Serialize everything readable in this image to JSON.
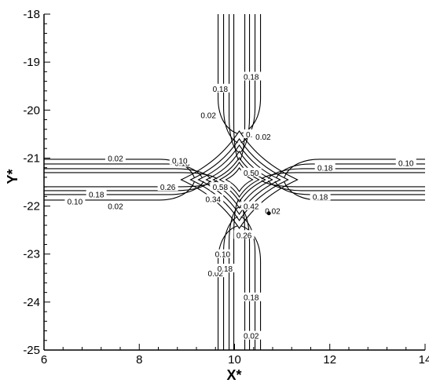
{
  "chart_data": {
    "type": "contour",
    "xlabel": "X*",
    "ylabel": "Y*",
    "xlim": [
      6,
      14
    ],
    "ylim": [
      -25,
      -18
    ],
    "xticks": [
      6,
      8,
      10,
      12,
      14
    ],
    "yticks": [
      -18,
      -19,
      -20,
      -21,
      -22,
      -23,
      -24,
      -25
    ],
    "xtick_labels": [
      "6",
      "8",
      "10",
      "12",
      "14"
    ],
    "ytick_labels": [
      "-18",
      "-19",
      "-20",
      "-21",
      "-22",
      "-23",
      "-24",
      "-25"
    ],
    "grid": false,
    "contour_levels": [
      0.02,
      0.1,
      0.18,
      0.26,
      0.34,
      0.42,
      0.5,
      0.58
    ],
    "center": {
      "x": 10.1,
      "y": -21.45
    },
    "marker_point": {
      "x": 10.72,
      "y": -22.15
    },
    "contour_labels": [
      {
        "text": "0.02",
        "x": 7.5,
        "y": -21.0
      },
      {
        "text": "0.18",
        "x": 8.9,
        "y": -21.1
      },
      {
        "text": "0.10",
        "x": 8.85,
        "y": -21.05
      },
      {
        "text": "0.18",
        "x": 11.9,
        "y": -21.2
      },
      {
        "text": "0.10",
        "x": 13.6,
        "y": -21.1
      },
      {
        "text": "0.26",
        "x": 8.6,
        "y": -21.6
      },
      {
        "text": "0.18",
        "x": 7.1,
        "y": -21.75
      },
      {
        "text": "0.10",
        "x": 6.65,
        "y": -21.9
      },
      {
        "text": "0.02",
        "x": 7.5,
        "y": -22.0
      },
      {
        "text": "0.18",
        "x": 11.8,
        "y": -21.8
      },
      {
        "text": "0.58",
        "x": 9.7,
        "y": -21.6
      },
      {
        "text": "0.50",
        "x": 10.35,
        "y": -21.3
      },
      {
        "text": "0.42",
        "x": 10.35,
        "y": -22.0
      },
      {
        "text": "0.34",
        "x": 9.55,
        "y": -21.85
      },
      {
        "text": "0.18",
        "x": 9.7,
        "y": -19.55
      },
      {
        "text": "0.02",
        "x": 9.45,
        "y": -20.1
      },
      {
        "text": "0.18",
        "x": 10.35,
        "y": -19.3
      },
      {
        "text": "0.18",
        "x": 10.35,
        "y": -23.9
      },
      {
        "text": "0.02",
        "x": 10.35,
        "y": -24.7
      },
      {
        "text": "0.10",
        "x": 9.75,
        "y": -23.0
      },
      {
        "text": "0.02",
        "x": 9.6,
        "y": -23.4
      },
      {
        "text": "0.18",
        "x": 9.8,
        "y": -23.3
      },
      {
        "text": "0.10",
        "x": 10.4,
        "y": -20.5
      },
      {
        "text": "0.02",
        "x": 10.6,
        "y": -20.55
      },
      {
        "text": "0.02",
        "x": 10.8,
        "y": -22.1
      },
      {
        "text": "0.26",
        "x": 10.2,
        "y": -22.6
      }
    ]
  }
}
